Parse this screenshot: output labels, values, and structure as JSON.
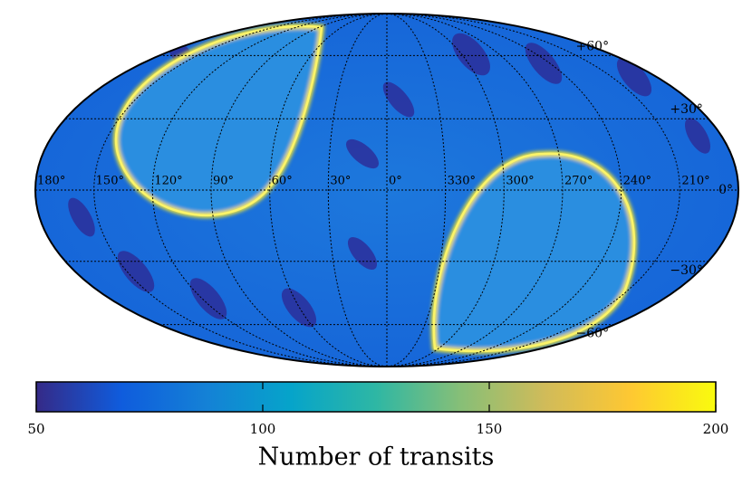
{
  "chart_data": {
    "type": "mollweide",
    "lon_ticks": [
      {
        "value": 180,
        "label": "180°"
      },
      {
        "value": 150,
        "label": "150°"
      },
      {
        "value": 120,
        "label": "120°"
      },
      {
        "value": 90,
        "label": "90°"
      },
      {
        "value": 60,
        "label": "60°"
      },
      {
        "value": 30,
        "label": "30°"
      },
      {
        "value": 0,
        "label": "0°"
      },
      {
        "value": 330,
        "label": "330°"
      },
      {
        "value": 300,
        "label": "300°"
      },
      {
        "value": 270,
        "label": "270°"
      },
      {
        "value": 240,
        "label": "240°"
      },
      {
        "value": 210,
        "label": "210°"
      }
    ],
    "lat_ticks": [
      {
        "value": 60,
        "label": "+60°"
      },
      {
        "value": 30,
        "label": "+30°"
      },
      {
        "value": 0,
        "label": "0°"
      },
      {
        "value": -30,
        "label": "−30°"
      },
      {
        "value": -60,
        "label": "−60°"
      }
    ],
    "grid": true,
    "colorbar": {
      "label": "Number of transits",
      "lim": [
        50,
        200
      ],
      "ticks": [
        50,
        100,
        150,
        200
      ],
      "colormap": [
        "#352a87",
        "#0f5cdd",
        "#1481d6",
        "#06a4ca",
        "#2eb7a4",
        "#87bf77",
        "#d1bb59",
        "#fec832",
        "#f9fb0e"
      ]
    }
  }
}
